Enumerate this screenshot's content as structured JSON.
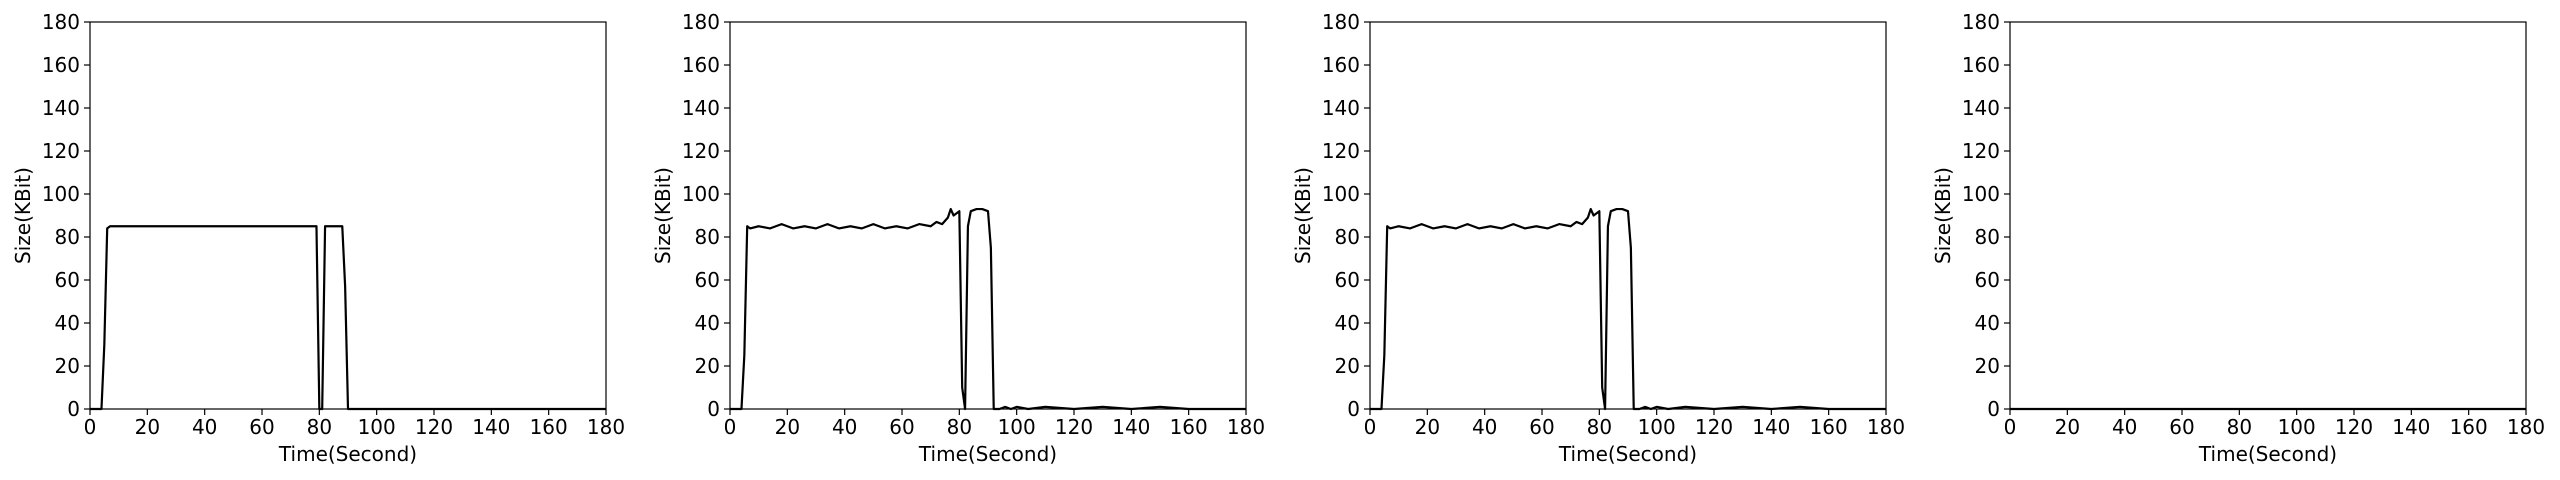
{
  "chart_data": [
    {
      "type": "line",
      "xlabel": "Time(Second)",
      "ylabel": "Size(KBit)",
      "xlim": [
        0,
        180
      ],
      "ylim": [
        0,
        180
      ],
      "xticks": [
        0,
        20,
        40,
        60,
        80,
        100,
        120,
        140,
        160,
        180
      ],
      "yticks": [
        0,
        20,
        40,
        60,
        80,
        100,
        120,
        140,
        160,
        180
      ],
      "grid": false,
      "series": [
        {
          "color": "#000000",
          "x": [
            0,
            2,
            4,
            5,
            6,
            7,
            10,
            20,
            30,
            40,
            50,
            60,
            70,
            79,
            80,
            81,
            82,
            83,
            84,
            86,
            88,
            89,
            90,
            91,
            92,
            100,
            120,
            140,
            160,
            180
          ],
          "y": [
            0,
            0,
            0,
            30,
            84,
            85,
            85,
            85,
            85,
            85,
            85,
            85,
            85,
            85,
            0,
            0,
            85,
            85,
            85,
            85,
            85,
            57,
            0,
            0,
            0,
            0,
            0,
            0,
            0,
            0
          ]
        }
      ]
    },
    {
      "type": "line",
      "xlabel": "Time(Second)",
      "ylabel": "Size(KBit)",
      "xlim": [
        0,
        180
      ],
      "ylim": [
        0,
        180
      ],
      "xticks": [
        0,
        20,
        40,
        60,
        80,
        100,
        120,
        140,
        160,
        180
      ],
      "yticks": [
        0,
        20,
        40,
        60,
        80,
        100,
        120,
        140,
        160,
        180
      ],
      "grid": false,
      "series": [
        {
          "color": "#000000",
          "x": [
            0,
            2,
            4,
            5,
            6,
            7,
            10,
            14,
            18,
            22,
            26,
            30,
            34,
            38,
            42,
            46,
            50,
            54,
            58,
            62,
            66,
            70,
            72,
            74,
            76,
            77,
            78,
            80,
            81,
            82,
            83,
            84,
            86,
            88,
            90,
            91,
            92,
            94,
            96,
            98,
            100,
            104,
            110,
            120,
            130,
            140,
            150,
            160,
            170,
            180
          ],
          "y": [
            0,
            0,
            0,
            25,
            85,
            84,
            85,
            84,
            86,
            84,
            85,
            84,
            86,
            84,
            85,
            84,
            86,
            84,
            85,
            84,
            86,
            85,
            87,
            86,
            89,
            93,
            90,
            92,
            10,
            0,
            85,
            92,
            93,
            93,
            92,
            75,
            0,
            0,
            1,
            0,
            1,
            0,
            1,
            0,
            1,
            0,
            1,
            0,
            0,
            0
          ]
        }
      ]
    },
    {
      "type": "line",
      "xlabel": "Time(Second)",
      "ylabel": "Size(KBit)",
      "xlim": [
        0,
        180
      ],
      "ylim": [
        0,
        180
      ],
      "xticks": [
        0,
        20,
        40,
        60,
        80,
        100,
        120,
        140,
        160,
        180
      ],
      "yticks": [
        0,
        20,
        40,
        60,
        80,
        100,
        120,
        140,
        160,
        180
      ],
      "grid": false,
      "series": [
        {
          "color": "#000000",
          "x": [
            0,
            2,
            4,
            5,
            6,
            7,
            10,
            14,
            18,
            22,
            26,
            30,
            34,
            38,
            42,
            46,
            50,
            54,
            58,
            62,
            66,
            70,
            72,
            74,
            76,
            77,
            78,
            80,
            81,
            82,
            83,
            84,
            86,
            88,
            90,
            91,
            92,
            94,
            96,
            98,
            100,
            104,
            110,
            120,
            130,
            140,
            150,
            160,
            170,
            180
          ],
          "y": [
            0,
            0,
            0,
            25,
            85,
            84,
            85,
            84,
            86,
            84,
            85,
            84,
            86,
            84,
            85,
            84,
            86,
            84,
            85,
            84,
            86,
            85,
            87,
            86,
            89,
            93,
            90,
            92,
            10,
            0,
            85,
            92,
            93,
            93,
            92,
            75,
            0,
            0,
            1,
            0,
            1,
            0,
            1,
            0,
            1,
            0,
            1,
            0,
            0,
            0
          ]
        }
      ]
    },
    {
      "type": "line",
      "xlabel": "Time(Second)",
      "ylabel": "Size(KBit)",
      "xlim": [
        0,
        180
      ],
      "ylim": [
        0,
        180
      ],
      "xticks": [
        0,
        20,
        40,
        60,
        80,
        100,
        120,
        140,
        160,
        180
      ],
      "yticks": [
        0,
        20,
        40,
        60,
        80,
        100,
        120,
        140,
        160,
        180
      ],
      "grid": false,
      "series": [
        {
          "color": "#000000",
          "x": [
            0,
            180
          ],
          "y": [
            0,
            0
          ]
        }
      ]
    }
  ]
}
